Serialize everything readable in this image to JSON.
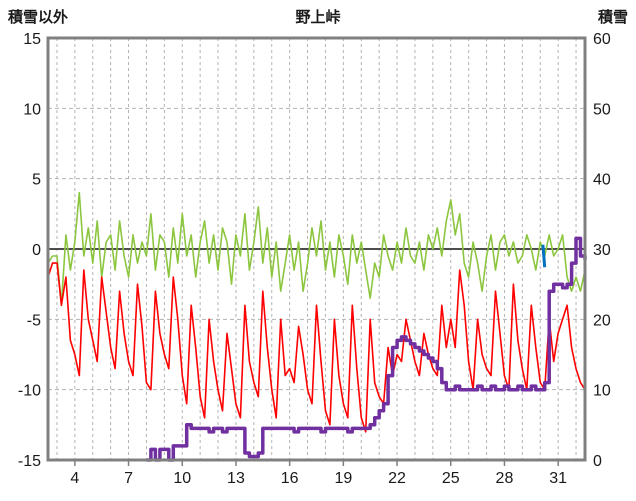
{
  "chart_data": {
    "type": "line",
    "title": "野上峠",
    "left_axis_label": "積雪以外",
    "right_axis_label": "積雪",
    "xlim": [
      2.5,
      32.5
    ],
    "ylim": [
      -15,
      15
    ],
    "rlim": [
      0,
      60
    ],
    "x_ticks": [
      4,
      7,
      10,
      13,
      16,
      19,
      22,
      25,
      28,
      31
    ],
    "y_left_ticks": [
      15,
      10,
      5,
      0,
      -5,
      -10,
      -15
    ],
    "y_right_ticks": [
      60,
      50,
      40,
      30,
      20,
      10,
      0
    ],
    "grid": {
      "x_step": 1,
      "dashed": true
    },
    "colors": {
      "frame": "#808080",
      "grid": "#b3b3b3",
      "zero_line": "#4d4d4d",
      "green": "#8cc63f",
      "red": "#ff0000",
      "purple": "#7030a0",
      "blue": "#0070c0"
    },
    "x_start": 2.5,
    "x_step": 0.25,
    "series": [
      {
        "name": "green-series",
        "color": "#8cc63f",
        "width": 1.6,
        "axis": "left",
        "step": false,
        "values": [
          -1.0,
          -0.5,
          -0.5,
          -4.0,
          1.0,
          -1.5,
          0.5,
          4.0,
          -0.5,
          1.5,
          -1.0,
          2.0,
          -2.0,
          0.5,
          1.0,
          -1.5,
          2.0,
          -0.5,
          -2.0,
          1.0,
          -1.0,
          0.5,
          -0.5,
          2.5,
          -1.5,
          1.0,
          0.5,
          -2.0,
          1.5,
          -1.0,
          2.5,
          -0.5,
          1.0,
          -2.0,
          0.5,
          2.0,
          -1.0,
          1.0,
          -1.5,
          1.5,
          0.5,
          -2.5,
          1.0,
          -0.5,
          2.5,
          -1.5,
          0.5,
          3.0,
          -1.0,
          1.5,
          -2.0,
          0.5,
          -3.0,
          -1.0,
          1.0,
          -1.5,
          0.5,
          -3.0,
          -1.0,
          1.5,
          -0.5,
          2.0,
          -1.5,
          0.5,
          -2.0,
          1.0,
          -0.5,
          -2.5,
          1.0,
          -1.0,
          0.5,
          -1.5,
          -3.5,
          -1.0,
          -2.0,
          1.0,
          -0.5,
          -1.5,
          0.5,
          -1.0,
          1.5,
          -0.5,
          -1.0,
          0.5,
          -1.5,
          1.0,
          0.0,
          1.5,
          -0.5,
          2.0,
          3.5,
          1.0,
          2.5,
          -1.0,
          -2.0,
          0.5,
          -1.0,
          -3.0,
          -0.5,
          1.0,
          -1.5,
          0.5,
          1.0,
          -0.5,
          0.5,
          -1.0,
          -0.5,
          1.0,
          0.0,
          -1.5,
          0.5,
          -0.5,
          1.0,
          -0.5,
          0.0,
          1.0,
          -2.0,
          -3.0,
          -2.0,
          -3.0,
          -1.5
        ]
      },
      {
        "name": "red-series",
        "color": "#ff0000",
        "width": 1.6,
        "axis": "left",
        "step": false,
        "values": [
          -2.0,
          -1.0,
          -1.0,
          -4.0,
          -2.0,
          -6.5,
          -7.5,
          -9.0,
          -1.5,
          -5.0,
          -6.5,
          -8.0,
          -2.0,
          -4.5,
          -7.0,
          -8.5,
          -3.0,
          -6.0,
          -8.0,
          -9.0,
          -2.5,
          -5.5,
          -9.5,
          -10.0,
          -3.0,
          -6.0,
          -7.5,
          -8.5,
          -2.0,
          -5.0,
          -9.0,
          -11.0,
          -4.0,
          -7.0,
          -10.5,
          -12.0,
          -5.0,
          -8.0,
          -10.0,
          -11.5,
          -6.0,
          -8.5,
          -11.0,
          -12.0,
          -4.0,
          -8.0,
          -9.5,
          -10.5,
          -3.0,
          -7.0,
          -10.0,
          -12.0,
          -5.0,
          -9.0,
          -8.5,
          -9.5,
          -5.5,
          -7.5,
          -10.0,
          -11.0,
          -4.0,
          -8.0,
          -11.5,
          -12.5,
          -5.0,
          -9.0,
          -11.0,
          -12.0,
          -4.0,
          -8.5,
          -12.0,
          -13.0,
          -5.0,
          -9.5,
          -10.5,
          -11.0,
          -7.0,
          -9.0,
          -7.5,
          -8.0,
          -5.0,
          -6.5,
          -8.0,
          -9.0,
          -6.0,
          -7.5,
          -8.5,
          -9.0,
          -4.0,
          -7.0,
          -5.0,
          -7.0,
          -1.5,
          -4.0,
          -8.0,
          -10.0,
          -5.0,
          -7.5,
          -8.5,
          -9.0,
          -3.0,
          -6.0,
          -9.0,
          -10.0,
          -2.5,
          -6.5,
          -8.5,
          -10.0,
          -4.0,
          -7.0,
          -9.5,
          -10.0,
          -5.0,
          -8.0,
          -6.0,
          -5.0,
          -4.0,
          -7.0,
          -8.5,
          -9.5,
          -10.0
        ]
      },
      {
        "name": "snow-depth-purple",
        "color": "#7030a0",
        "width": 3.5,
        "axis": "right",
        "step": true,
        "values": [
          null,
          null,
          null,
          null,
          null,
          null,
          null,
          null,
          null,
          null,
          null,
          null,
          null,
          null,
          null,
          null,
          null,
          null,
          null,
          null,
          null,
          null,
          0,
          1.5,
          0,
          1.5,
          1.5,
          0,
          2,
          2,
          2,
          5,
          4.5,
          4.5,
          4.5,
          4.5,
          4,
          4.5,
          4.5,
          4,
          4.5,
          4.5,
          4.5,
          4.5,
          1,
          0.5,
          0.5,
          1,
          4.5,
          4.5,
          4.5,
          4.5,
          4.5,
          4.5,
          4.5,
          4,
          4.5,
          4.5,
          4.5,
          4.5,
          4.5,
          4,
          4.5,
          4.5,
          4.5,
          4.5,
          4.5,
          4,
          4.5,
          4.5,
          4.5,
          4.5,
          5,
          6,
          7,
          8,
          12,
          16,
          17,
          17.5,
          17,
          16.5,
          16,
          15.5,
          15,
          14.5,
          14,
          13,
          11,
          10,
          10,
          10.5,
          10,
          10,
          10,
          10,
          10.5,
          10,
          10,
          10.5,
          10,
          10,
          10.5,
          10,
          10,
          10.5,
          10,
          10,
          10.5,
          10,
          10,
          11,
          24,
          25,
          25,
          24.5,
          25,
          28,
          31.5,
          29,
          28.5
        ]
      },
      {
        "name": "blue-mark",
        "color": "#0070c0",
        "width": 3,
        "axis": "left",
        "step": false,
        "x": [
          30.15,
          30.25
        ],
        "values": [
          0.3,
          -1.3
        ]
      }
    ]
  }
}
